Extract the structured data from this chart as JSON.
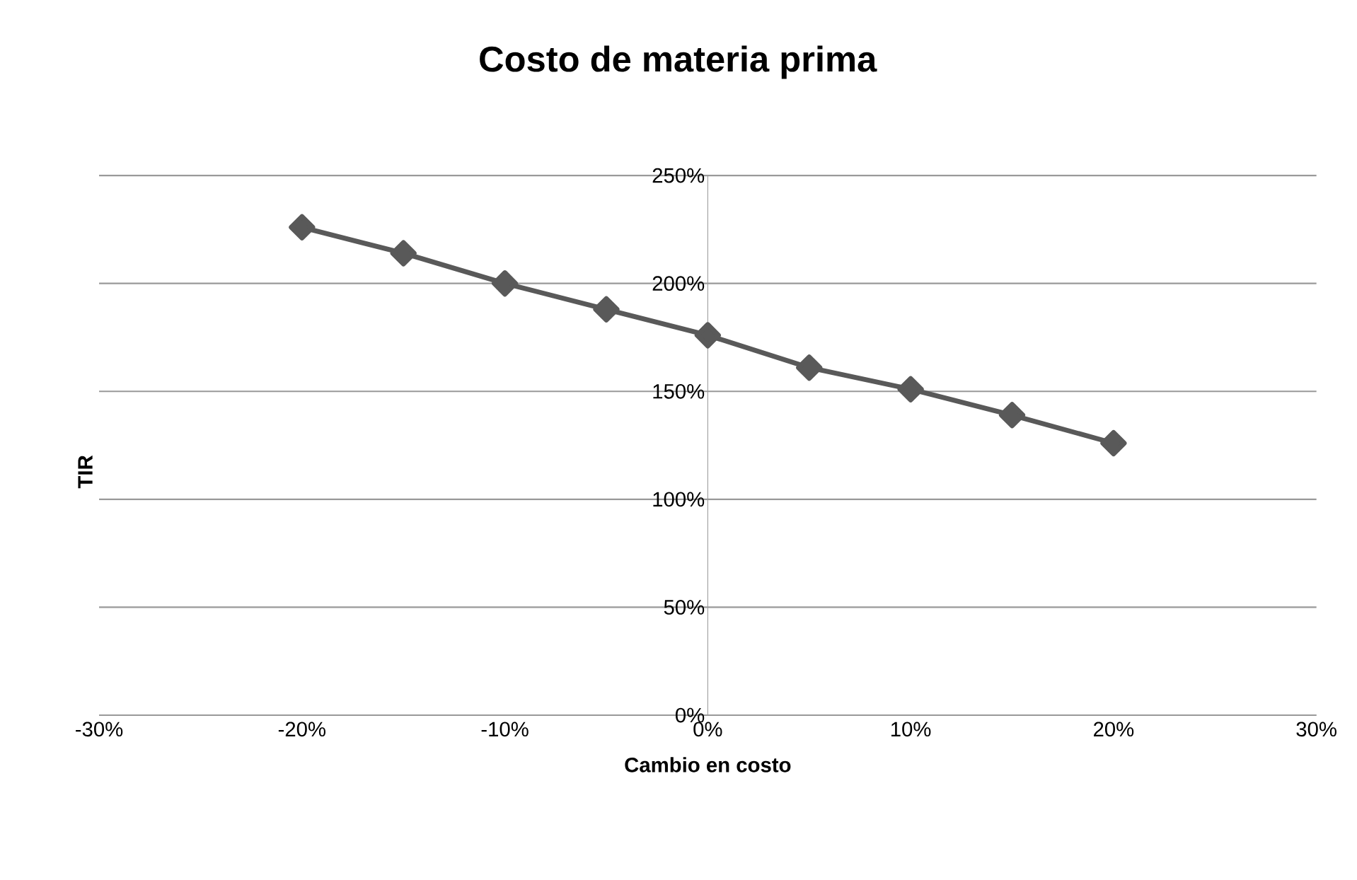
{
  "chart_data": {
    "type": "line",
    "title": "Costo de materia prima",
    "xlabel": "Cambio  en costo",
    "ylabel": "TIR",
    "x": [
      -20,
      -15,
      -10,
      -5,
      0,
      5,
      10,
      15,
      20
    ],
    "series": [
      {
        "color": "#595959",
        "values": [
          226,
          214,
          200,
          188,
          176,
          161,
          151,
          139,
          126
        ]
      }
    ],
    "xlim": [
      -30,
      30
    ],
    "ylim": [
      0,
      250
    ],
    "xticks": [
      {
        "value": -30,
        "label": "-30%"
      },
      {
        "value": -20,
        "label": "-20%"
      },
      {
        "value": -10,
        "label": "-10%"
      },
      {
        "value": 0,
        "label": "0%"
      },
      {
        "value": 10,
        "label": "10%"
      },
      {
        "value": 20,
        "label": "20%"
      },
      {
        "value": 30,
        "label": "30%"
      }
    ],
    "yticks": [
      {
        "value": 0,
        "label": "0%"
      },
      {
        "value": 50,
        "label": "50%"
      },
      {
        "value": 100,
        "label": "100%"
      },
      {
        "value": 150,
        "label": "150%"
      },
      {
        "value": 200,
        "label": "200%"
      },
      {
        "value": 250,
        "label": "250%"
      }
    ],
    "grid": "y",
    "marker": "diamond",
    "line_style": "solid"
  }
}
